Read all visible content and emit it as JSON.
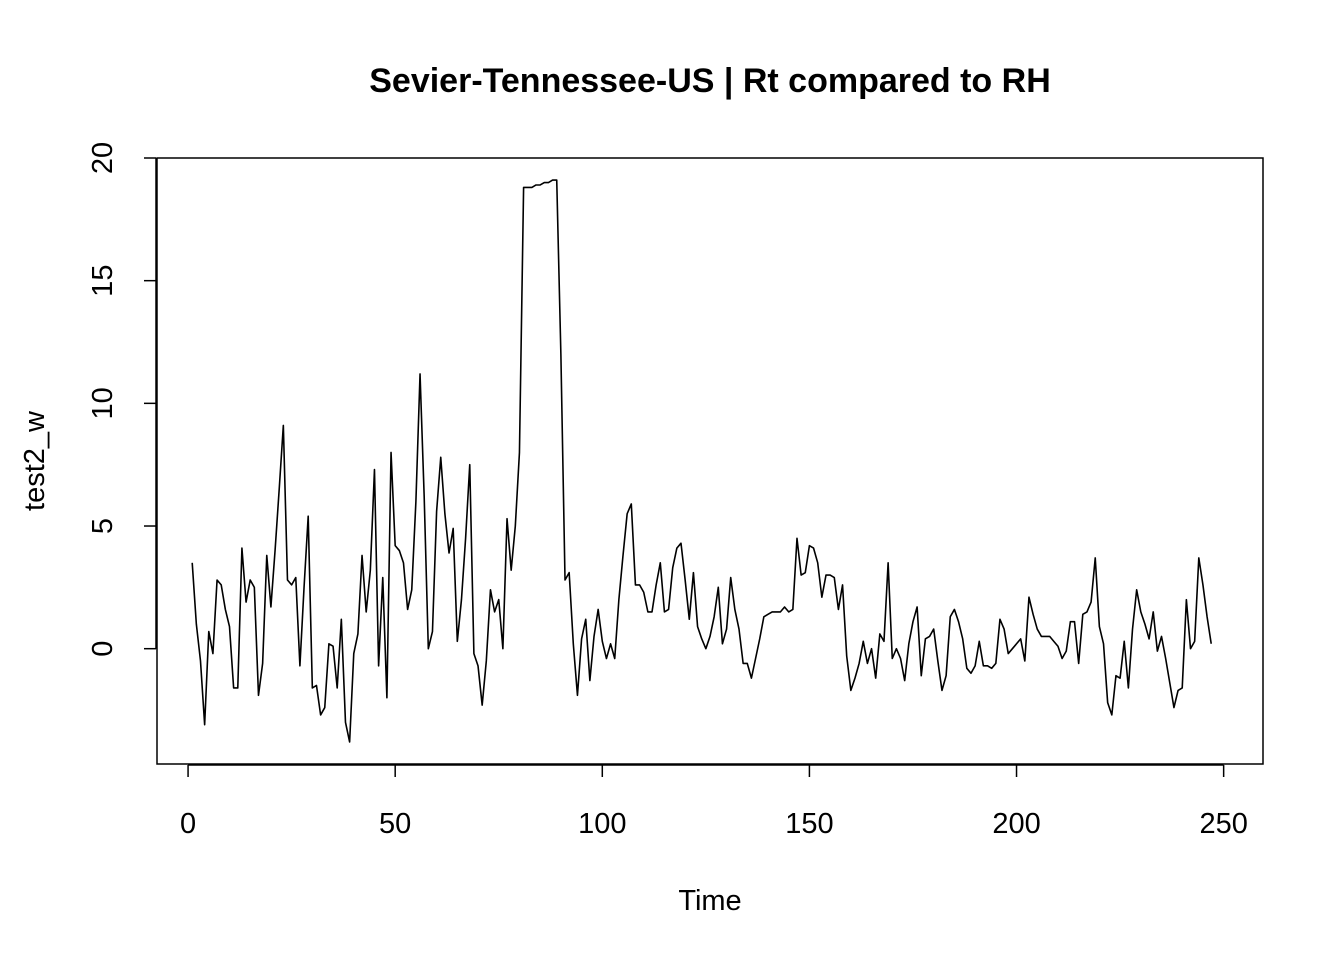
{
  "chart_data": {
    "type": "line",
    "title": "Sevier-Tennessee-US | Rt compared to RH",
    "xlabel": "Time",
    "ylabel": "test2_w",
    "xlim": [
      -7.5,
      259.5
    ],
    "ylim": [
      -4.7,
      20
    ],
    "xticks": [
      0,
      50,
      100,
      150,
      200,
      250
    ],
    "yticks": [
      0,
      5,
      10,
      15,
      20
    ],
    "grid": false,
    "legend": "none",
    "line_color": "#000000",
    "series": [
      {
        "x_start": 1,
        "values": [
          3.5,
          1.0,
          -0.5,
          -3.1,
          0.7,
          -0.2,
          2.8,
          2.6,
          1.6,
          0.9,
          -1.6,
          -1.6,
          4.1,
          1.9,
          2.8,
          2.5,
          -1.9,
          -0.6,
          3.8,
          1.7,
          4.0,
          6.5,
          9.1,
          2.8,
          2.6,
          2.9,
          -0.7,
          2.5,
          5.4,
          -1.6,
          -1.5,
          -2.7,
          -2.4,
          0.2,
          0.1,
          -1.6,
          1.2,
          -3.0,
          -3.8,
          -0.2,
          0.6,
          3.8,
          1.5,
          3.2,
          7.3,
          -0.7,
          2.9,
          -2.0,
          8.0,
          4.2,
          4.0,
          3.5,
          1.6,
          2.4,
          6.0,
          11.2,
          6.2,
          0.0,
          0.7,
          5.6,
          7.8,
          5.5,
          3.9,
          4.9,
          0.3,
          2.0,
          4.5,
          7.5,
          -0.2,
          -0.7,
          -2.3,
          -0.5,
          2.4,
          1.5,
          2.0,
          0.0,
          5.3,
          3.2,
          5.0,
          8.0,
          18.8,
          18.8,
          18.8,
          18.9,
          18.9,
          19.0,
          19.0,
          19.1,
          19.1,
          12.0,
          2.8,
          3.1,
          0.2,
          -1.9,
          0.4,
          1.2,
          -1.3,
          0.5,
          1.6,
          0.3,
          -0.4,
          0.2,
          -0.4,
          2.0,
          3.8,
          5.5,
          5.9,
          2.6,
          2.6,
          2.3,
          1.5,
          1.5,
          2.6,
          3.5,
          1.5,
          1.6,
          3.3,
          4.1,
          4.3,
          2.8,
          1.2,
          3.1,
          0.9,
          0.4,
          0.0,
          0.5,
          1.3,
          2.5,
          0.2,
          0.8,
          2.9,
          1.6,
          0.8,
          -0.6,
          -0.6,
          -1.2,
          -0.4,
          0.4,
          1.3,
          1.4,
          1.5,
          1.5,
          1.5,
          1.7,
          1.5,
          1.6,
          4.5,
          3.0,
          3.1,
          4.2,
          4.1,
          3.5,
          2.1,
          3.0,
          3.0,
          2.9,
          1.6,
          2.6,
          -0.3,
          -1.7,
          -1.2,
          -0.6,
          0.3,
          -0.6,
          0.0,
          -1.2,
          0.6,
          0.3,
          3.5,
          -0.4,
          0.0,
          -0.4,
          -1.3,
          0.2,
          1.1,
          1.7,
          -1.1,
          0.4,
          0.5,
          0.8,
          -0.5,
          -1.7,
          -1.1,
          1.3,
          1.6,
          1.1,
          0.4,
          -0.8,
          -1.0,
          -0.7,
          0.3,
          -0.7,
          -0.7,
          -0.8,
          -0.6,
          1.2,
          0.8,
          -0.2,
          0.0,
          0.2,
          0.4,
          -0.5,
          2.1,
          1.4,
          0.8,
          0.5,
          0.5,
          0.5,
          0.3,
          0.1,
          -0.4,
          -0.1,
          1.1,
          1.1,
          -0.6,
          1.4,
          1.5,
          1.9,
          3.7,
          0.9,
          0.2,
          -2.2,
          -2.7,
          -1.1,
          -1.2,
          0.3,
          -1.6,
          0.8,
          2.4,
          1.5,
          1.0,
          0.4,
          1.5,
          -0.1,
          0.5,
          -0.4,
          -1.4,
          -2.4,
          -1.7,
          -1.6,
          2.0,
          0.0,
          0.3,
          3.7,
          2.6,
          1.3,
          0.2
        ]
      }
    ]
  }
}
